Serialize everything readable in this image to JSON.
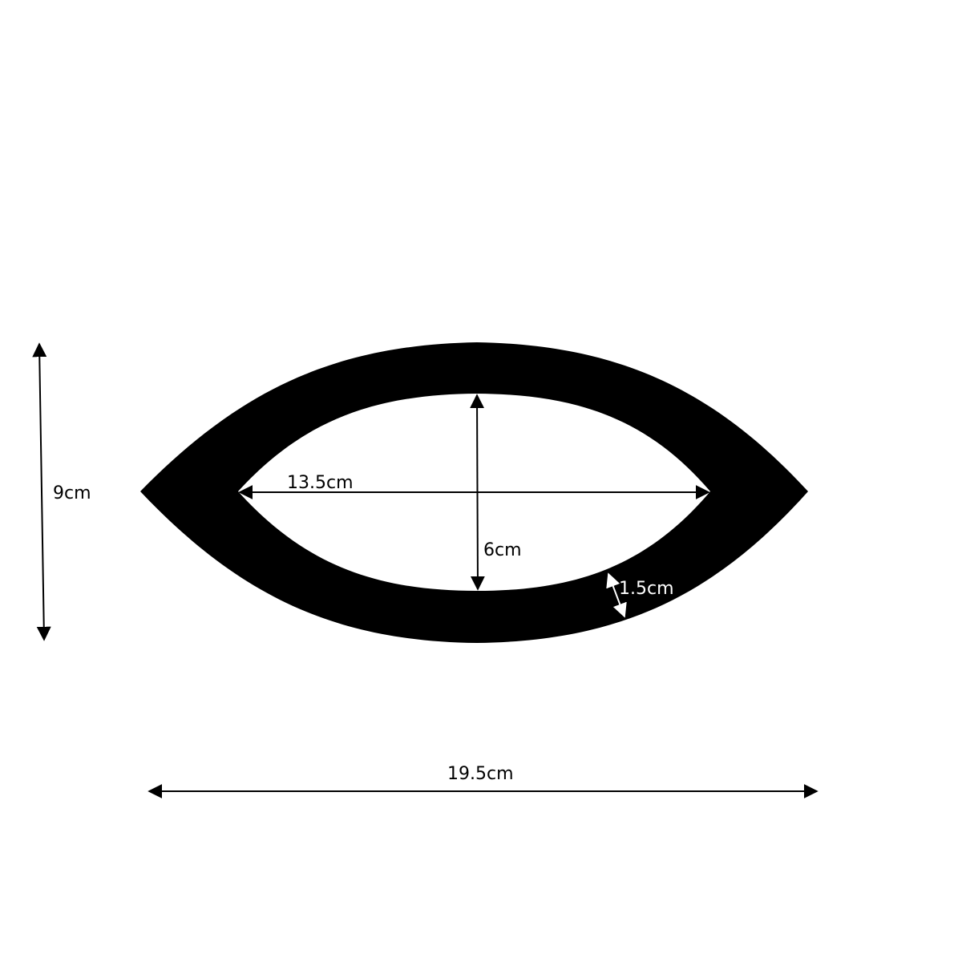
{
  "colors": {
    "shape": "#000000",
    "background": "#ffffff",
    "inner_arrow": "#ffffff"
  },
  "labels": {
    "height": "9cm",
    "width": "19.5cm",
    "inner_width": "13.5cm",
    "inner_height": "6cm",
    "thickness": "1.5cm"
  }
}
